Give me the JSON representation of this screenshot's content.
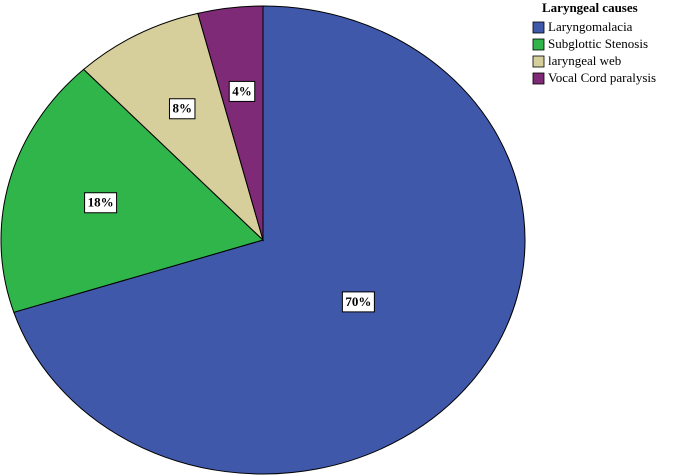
{
  "chart_data": {
    "type": "pie",
    "legend_title": "Laryngeal causes",
    "categories": [
      "Laryngomalacia",
      "Subglottic Stenosis",
      "laryngeal web",
      "Vocal Cord paralysis"
    ],
    "values": [
      70,
      18,
      8,
      4
    ],
    "value_labels": [
      "70%",
      "18%",
      "8%",
      "4%"
    ],
    "colors": [
      "#3f58aa",
      "#30b54a",
      "#d6cf9c",
      "#7e2a76"
    ],
    "legend_position": "upper right"
  }
}
